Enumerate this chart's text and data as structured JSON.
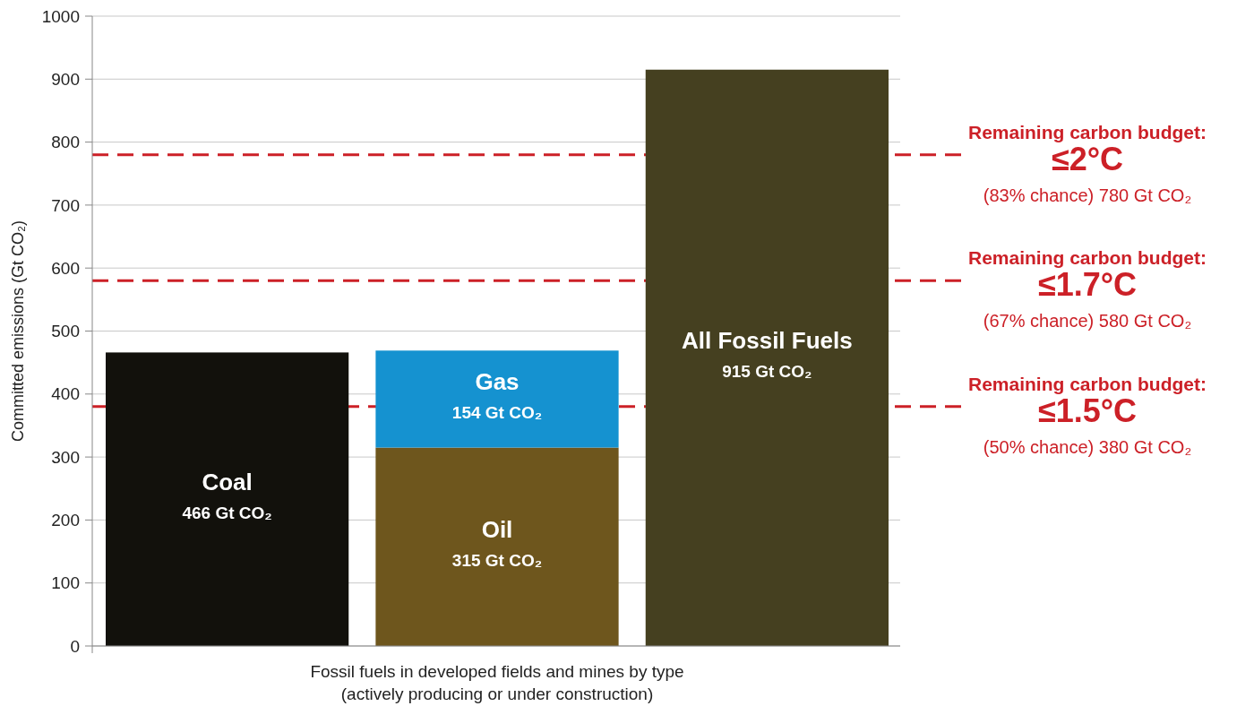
{
  "chart_data": {
    "type": "bar",
    "stacked": true,
    "categories": [
      null,
      null,
      null
    ],
    "ylabel": "Committed emissions (Gt CO₂)",
    "xlabel": "Fossil fuels in developed fields and mines by type\n(actively producing or under construction)",
    "series": [
      {
        "name": "Coal",
        "color": "#12110c",
        "values": [
          466,
          null,
          null
        ],
        "value_labels": [
          "466 Gt CO₂",
          null,
          null
        ]
      },
      {
        "name": "Oil",
        "color": "#6e561d",
        "values": [
          null,
          315,
          null
        ],
        "value_labels": [
          null,
          "315 Gt CO₂",
          null
        ]
      },
      {
        "name": "Gas",
        "color": "#1592d0",
        "values": [
          null,
          154,
          null
        ],
        "value_labels": [
          null,
          "154 Gt CO₂",
          null
        ]
      },
      {
        "name": "All Fossil Fuels",
        "color": "#454020",
        "values": [
          null,
          null,
          915
        ],
        "value_labels": [
          null,
          null,
          "915 Gt CO₂"
        ]
      }
    ],
    "ylim": [
      0,
      1000
    ],
    "yticks": [
      0,
      100,
      200,
      300,
      400,
      500,
      600,
      700,
      800,
      900,
      1000
    ],
    "grid": "y",
    "ref_lines": [
      {
        "axis": "y",
        "value": 780,
        "label": "Remaining carbon budget:\n≤2°C\n(83% chance) 780 Gt CO₂",
        "color": "#cc2027",
        "line_style": "dashed"
      },
      {
        "axis": "y",
        "value": 580,
        "label": "Remaining carbon budget:\n≤1.7°C\n(67% chance) 580 Gt CO₂",
        "color": "#cc2027",
        "line_style": "dashed"
      },
      {
        "axis": "y",
        "value": 380,
        "label": "Remaining carbon budget:\n≤1.5°C\n(50% chance) 380 Gt CO₂",
        "color": "#cc2027",
        "line_style": "dashed"
      }
    ]
  }
}
